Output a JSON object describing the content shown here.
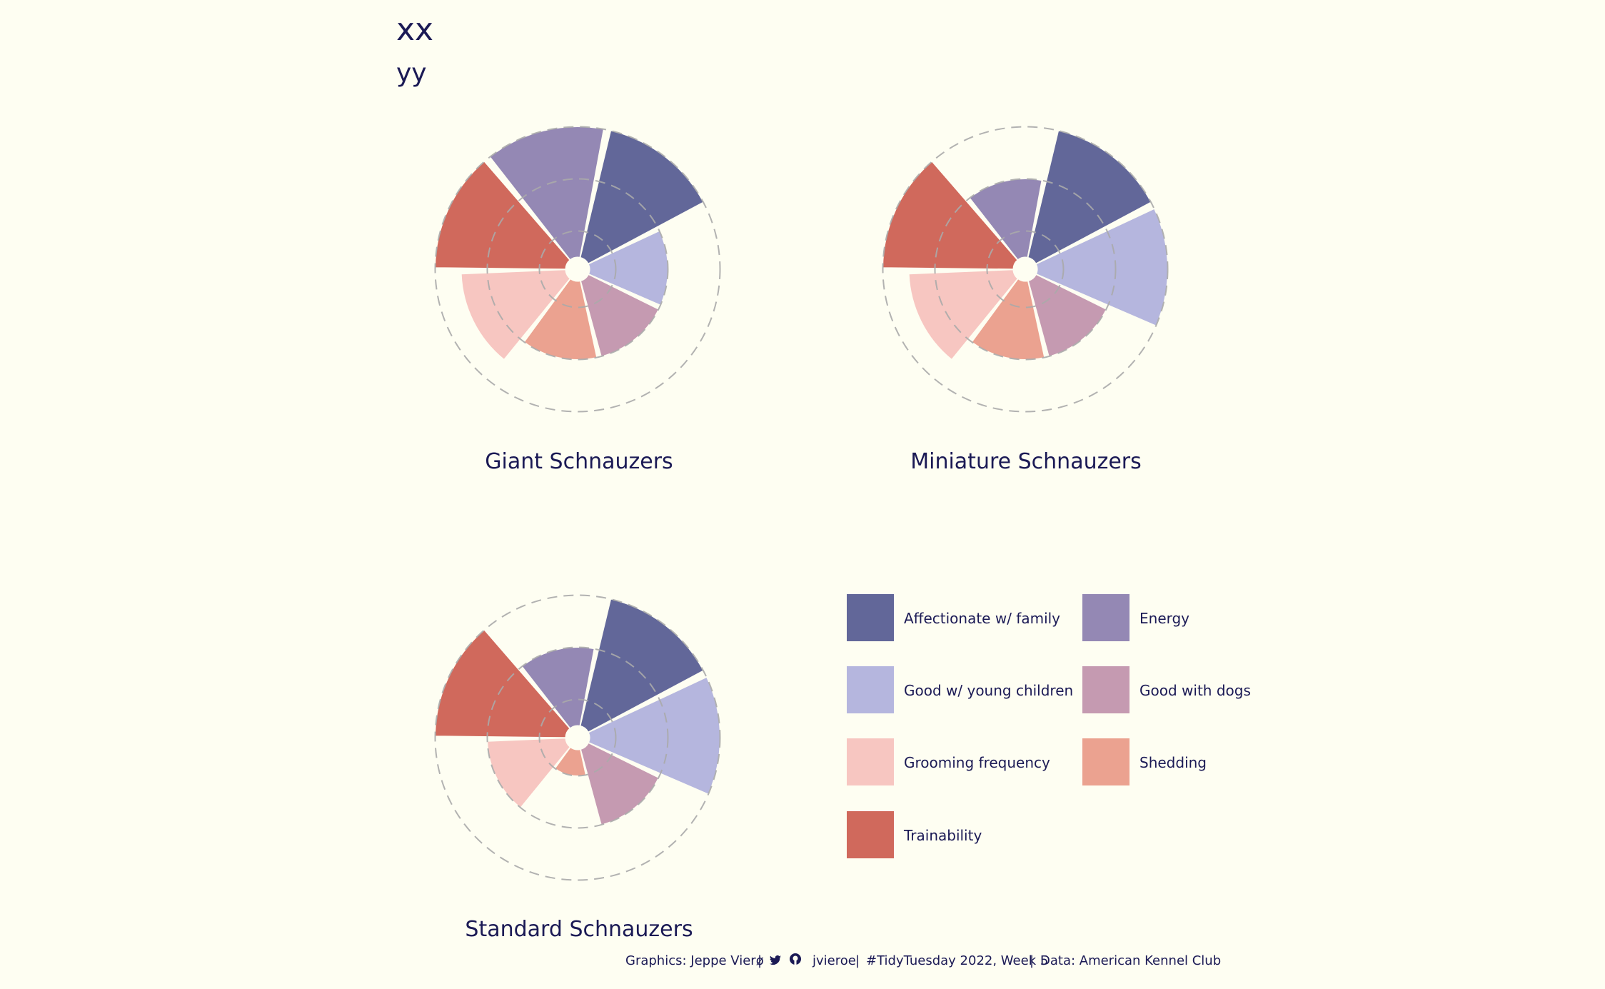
{
  "title": "xx",
  "subtitle": "yy",
  "caption": {
    "author": "Graphics: Jeppe Vierø",
    "sep1": "|",
    "twitter_icon": "twitter-icon",
    "github_icon": "github-icon",
    "handle": "jvieroe",
    "sep2": "|",
    "event": "#TidyTuesday 2022, Week 5",
    "sep3": "|",
    "source": "Data: American Kennel Club"
  },
  "colors": {
    "background": "#fefef2",
    "text": "#1b1a55",
    "grid": "#aaaaaa",
    "Affectionate w/ family": "#626799",
    "Energy": "#9488b4",
    "Good w/ young children": "#b5b6de",
    "Good with dogs": "#c59ab1",
    "Grooming frequency": "#f7c6c1",
    "Shedding": "#eba290",
    "Trainability": "#d0695c"
  },
  "chart_data": [
    {
      "type": "polar-bar",
      "title": "Giant Schnauzers",
      "categories": [
        "Affectionate w/ family",
        "Good w/ young children",
        "Good with dogs",
        "Shedding",
        "Grooming frequency",
        "Trainability",
        "Energy"
      ],
      "values": [
        5,
        3,
        3,
        3,
        4,
        5,
        5
      ],
      "rlim": [
        0,
        5.5
      ],
      "grid_r": [
        1,
        3,
        5
      ],
      "grid": "dashed circles"
    },
    {
      "type": "polar-bar",
      "title": "Miniature Schnauzers",
      "categories": [
        "Affectionate w/ family",
        "Good w/ young children",
        "Good with dogs",
        "Shedding",
        "Grooming frequency",
        "Trainability",
        "Energy"
      ],
      "values": [
        5,
        5,
        3,
        3,
        4,
        5,
        3
      ],
      "rlim": [
        0,
        5.5
      ],
      "grid_r": [
        1,
        3,
        5
      ],
      "grid": "dashed circles"
    },
    {
      "type": "polar-bar",
      "title": "Standard Schnauzers",
      "categories": [
        "Affectionate w/ family",
        "Good w/ young children",
        "Good with dogs",
        "Shedding",
        "Grooming frequency",
        "Trainability",
        "Energy"
      ],
      "values": [
        5,
        5,
        3,
        1,
        3,
        5,
        3
      ],
      "rlim": [
        0,
        5.5
      ],
      "grid_r": [
        1,
        3,
        5
      ],
      "grid": "dashed circles"
    }
  ],
  "legend": {
    "placement": "bottom-right",
    "items": [
      "Affectionate w/ family",
      "Energy",
      "Good w/ young children",
      "Good with dogs",
      "Grooming frequency",
      "Shedding",
      "Trainability"
    ]
  }
}
